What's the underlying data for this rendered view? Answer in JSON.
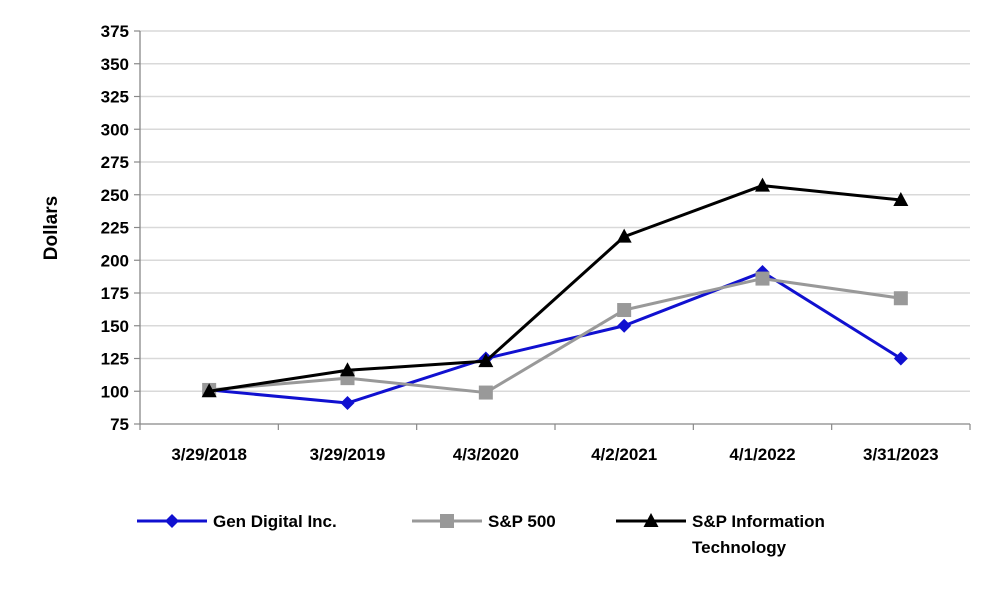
{
  "chart_data": {
    "type": "line",
    "title": "",
    "xlabel": "",
    "ylabel": "Dollars",
    "ylim": [
      75,
      375
    ],
    "yticks": [
      75,
      100,
      125,
      150,
      175,
      200,
      225,
      250,
      275,
      300,
      325,
      350,
      375
    ],
    "ytick_labels": [
      "75",
      "100",
      "125",
      "150",
      "175",
      "200",
      "225",
      "250",
      "275",
      "300",
      "325",
      "350",
      "375"
    ],
    "categories": [
      "3/29/2018",
      "3/29/2019",
      "4/3/2020",
      "4/2/2021",
      "4/1/2022",
      "3/31/2023"
    ],
    "grid": "horizontal",
    "legend_position": "bottom",
    "series": [
      {
        "name": "Gen Digital Inc.",
        "legend_lines": [
          "Gen Digital Inc."
        ],
        "color": "#1010d0",
        "marker": "diamond",
        "values": [
          101,
          91,
          125,
          150,
          191,
          125
        ]
      },
      {
        "name": "S&P 500",
        "legend_lines": [
          "S&P 500"
        ],
        "color": "#999999",
        "marker": "square",
        "values": [
          101,
          110,
          99,
          162,
          186,
          171
        ]
      },
      {
        "name": "S&P Information Technology",
        "legend_lines": [
          "S&P Information",
          "Technology"
        ],
        "color": "#000000",
        "marker": "triangle",
        "values": [
          100,
          116,
          123,
          218,
          257,
          246
        ]
      }
    ]
  }
}
